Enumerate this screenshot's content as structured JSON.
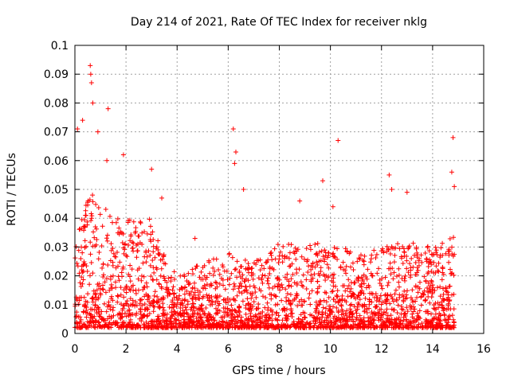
{
  "chart_data": {
    "type": "scatter",
    "title": "Day 214 of 2021, Rate Of TEC Index for receiver nklg",
    "xlabel": "GPS time / hours",
    "ylabel": "ROTI / TECUs",
    "xlim": [
      0,
      16
    ],
    "ylim": [
      0,
      0.1
    ],
    "xticks": [
      0,
      2,
      4,
      6,
      8,
      10,
      12,
      14,
      16
    ],
    "xtick_labels": [
      "0",
      "2",
      "4",
      "6",
      "8",
      "10",
      "12",
      "14",
      "16"
    ],
    "yticks": [
      0,
      0.01,
      0.02,
      0.03,
      0.04,
      0.05,
      0.06,
      0.07,
      0.08,
      0.09,
      0.1
    ],
    "ytick_labels": [
      "0",
      "0.01",
      "0.02",
      "0.03",
      "0.04",
      "0.05",
      "0.06",
      "0.07",
      "0.08",
      "0.09",
      "0.1"
    ],
    "grid": true,
    "marker": "+",
    "color": "#ff0000",
    "series": [
      {
        "name": "ROTI",
        "x_range": [
          0.0,
          14.85
        ],
        "typical_range": [
          0.002,
          0.02
        ],
        "envelope": [
          {
            "x": 0.0,
            "y": 0.03
          },
          {
            "x": 0.5,
            "y": 0.05
          },
          {
            "x": 1.0,
            "y": 0.045
          },
          {
            "x": 2.0,
            "y": 0.04
          },
          {
            "x": 3.0,
            "y": 0.04
          },
          {
            "x": 4.0,
            "y": 0.02
          },
          {
            "x": 5.0,
            "y": 0.025
          },
          {
            "x": 6.0,
            "y": 0.028
          },
          {
            "x": 7.0,
            "y": 0.025
          },
          {
            "x": 8.0,
            "y": 0.032
          },
          {
            "x": 9.0,
            "y": 0.03
          },
          {
            "x": 10.0,
            "y": 0.033
          },
          {
            "x": 11.0,
            "y": 0.028
          },
          {
            "x": 12.0,
            "y": 0.03
          },
          {
            "x": 13.0,
            "y": 0.032
          },
          {
            "x": 14.0,
            "y": 0.03
          },
          {
            "x": 14.85,
            "y": 0.035
          }
        ],
        "peaks": [
          {
            "x": 0.1,
            "y": 0.071
          },
          {
            "x": 0.3,
            "y": 0.074
          },
          {
            "x": 0.6,
            "y": 0.093
          },
          {
            "x": 0.62,
            "y": 0.09
          },
          {
            "x": 0.65,
            "y": 0.087
          },
          {
            "x": 0.7,
            "y": 0.08
          },
          {
            "x": 0.9,
            "y": 0.07
          },
          {
            "x": 1.3,
            "y": 0.078
          },
          {
            "x": 1.25,
            "y": 0.06
          },
          {
            "x": 1.9,
            "y": 0.062
          },
          {
            "x": 3.0,
            "y": 0.057
          },
          {
            "x": 3.4,
            "y": 0.047
          },
          {
            "x": 4.7,
            "y": 0.033
          },
          {
            "x": 6.2,
            "y": 0.071
          },
          {
            "x": 6.3,
            "y": 0.063
          },
          {
            "x": 6.25,
            "y": 0.059
          },
          {
            "x": 6.6,
            "y": 0.05
          },
          {
            "x": 8.8,
            "y": 0.046
          },
          {
            "x": 9.7,
            "y": 0.053
          },
          {
            "x": 10.3,
            "y": 0.067
          },
          {
            "x": 10.1,
            "y": 0.044
          },
          {
            "x": 12.3,
            "y": 0.055
          },
          {
            "x": 12.4,
            "y": 0.05
          },
          {
            "x": 13.0,
            "y": 0.049
          },
          {
            "x": 14.8,
            "y": 0.068
          },
          {
            "x": 14.75,
            "y": 0.056
          },
          {
            "x": 14.85,
            "y": 0.051
          }
        ]
      }
    ]
  }
}
